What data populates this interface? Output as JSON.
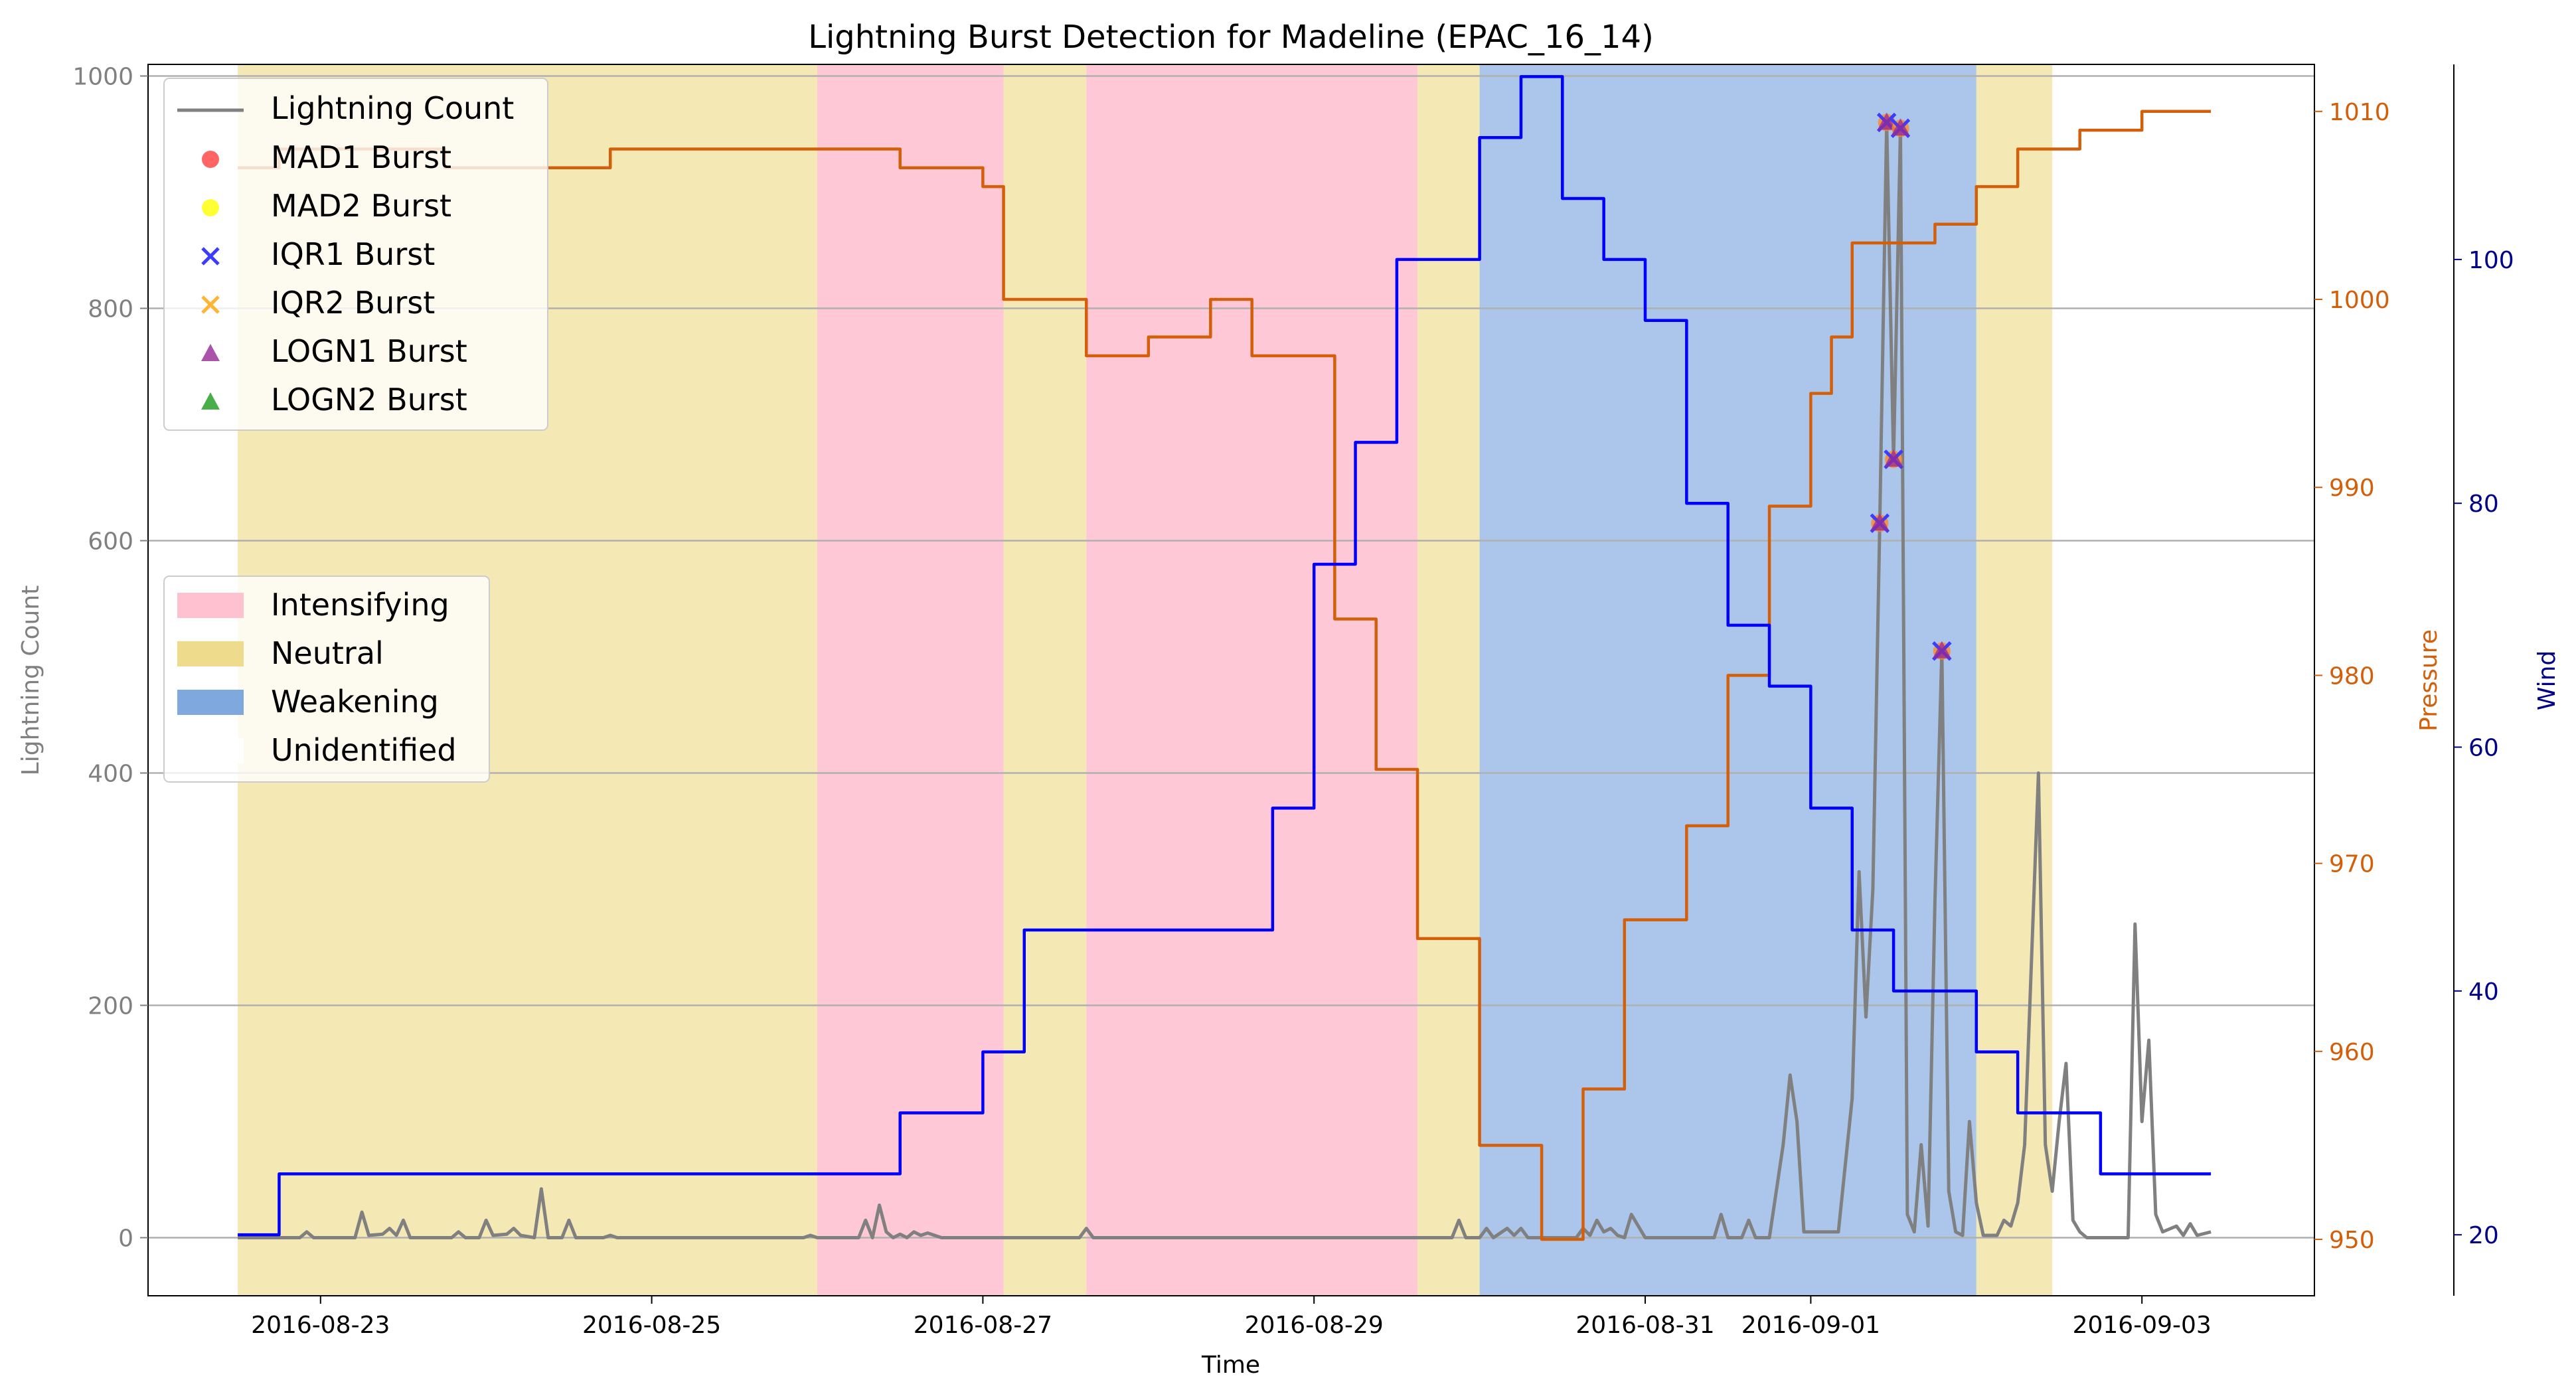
{
  "chart_data": {
    "type": "line",
    "title": "Lightning Burst Detection for Madeline (EPAC_16_14)",
    "xlabel": "Time",
    "ylabel": "Lightning Count",
    "y2label": "Pressure",
    "y3label": "Wind",
    "xlim": [
      "2016-08-21T23:00",
      "2016-09-04T01:00"
    ],
    "ylim": [
      -50,
      1010
    ],
    "y2lim": [
      947,
      1012.5
    ],
    "y3lim": [
      15,
      116
    ],
    "xticks": [
      "2016-08-23",
      "2016-08-25",
      "2016-08-27",
      "2016-08-29",
      "2016-08-31",
      "2016-09-01",
      "2016-09-03"
    ],
    "yticks": [
      0,
      200,
      400,
      600,
      800,
      1000
    ],
    "y2ticks": [
      950,
      960,
      970,
      980,
      990,
      1000,
      1010
    ],
    "y3ticks": [
      20,
      40,
      60,
      80,
      100
    ],
    "grid": "horizontal",
    "legend_upper": [
      "Lightning Count",
      "MAD1 Burst",
      "MAD2 Burst",
      "IQR1 Burst",
      "IQR2 Burst",
      "LOGN1 Burst",
      "LOGN2 Burst"
    ],
    "legend_lower": [
      "Intensifying",
      "Neutral",
      "Weakening",
      "Unidentified"
    ],
    "phases": [
      {
        "label": "Neutral",
        "start": "2016-08-22T12:00",
        "end": "2016-08-26T00:00"
      },
      {
        "label": "Intensifying",
        "start": "2016-08-26T00:00",
        "end": "2016-08-27T03:00"
      },
      {
        "label": "Neutral",
        "start": "2016-08-27T03:00",
        "end": "2016-08-27T15:00"
      },
      {
        "label": "Intensifying",
        "start": "2016-08-27T15:00",
        "end": "2016-08-29T15:00"
      },
      {
        "label": "Neutral",
        "start": "2016-08-29T15:00",
        "end": "2016-08-30T00:00"
      },
      {
        "label": "Weakening",
        "start": "2016-08-30T00:00",
        "end": "2016-09-02T00:00"
      },
      {
        "label": "Neutral",
        "start": "2016-09-02T00:00",
        "end": "2016-09-02T11:00"
      }
    ],
    "series": [
      {
        "name": "Lightning Count",
        "axis": "left",
        "color": "#808080",
        "points": [
          [
            "2016-08-22T12:00",
            0
          ],
          [
            "2016-08-22T21:00",
            0
          ],
          [
            "2016-08-22T22:00",
            5
          ],
          [
            "2016-08-22T23:00",
            0
          ],
          [
            "2016-08-23T05:00",
            0
          ],
          [
            "2016-08-23T06:00",
            22
          ],
          [
            "2016-08-23T07:00",
            2
          ],
          [
            "2016-08-23T09:00",
            3
          ],
          [
            "2016-08-23T10:00",
            8
          ],
          [
            "2016-08-23T11:00",
            2
          ],
          [
            "2016-08-23T12:00",
            15
          ],
          [
            "2016-08-23T13:00",
            0
          ],
          [
            "2016-08-23T19:00",
            0
          ],
          [
            "2016-08-23T20:00",
            5
          ],
          [
            "2016-08-23T21:00",
            0
          ],
          [
            "2016-08-23T23:00",
            0
          ],
          [
            "2016-08-24T00:00",
            15
          ],
          [
            "2016-08-24T01:00",
            2
          ],
          [
            "2016-08-24T03:00",
            3
          ],
          [
            "2016-08-24T04:00",
            8
          ],
          [
            "2016-08-24T05:00",
            2
          ],
          [
            "2016-08-24T07:00",
            0
          ],
          [
            "2016-08-24T08:00",
            42
          ],
          [
            "2016-08-24T09:00",
            0
          ],
          [
            "2016-08-24T11:00",
            0
          ],
          [
            "2016-08-24T12:00",
            15
          ],
          [
            "2016-08-24T13:00",
            0
          ],
          [
            "2016-08-24T17:00",
            0
          ],
          [
            "2016-08-24T18:00",
            2
          ],
          [
            "2016-08-24T19:00",
            0
          ],
          [
            "2016-08-25T22:00",
            0
          ],
          [
            "2016-08-25T23:00",
            2
          ],
          [
            "2016-08-26T00:00",
            0
          ],
          [
            "2016-08-26T06:00",
            0
          ],
          [
            "2016-08-26T07:00",
            15
          ],
          [
            "2016-08-26T08:00",
            0
          ],
          [
            "2016-08-26T09:00",
            28
          ],
          [
            "2016-08-26T10:00",
            5
          ],
          [
            "2016-08-26T11:00",
            0
          ],
          [
            "2016-08-26T12:00",
            3
          ],
          [
            "2016-08-26T13:00",
            0
          ],
          [
            "2016-08-26T14:00",
            5
          ],
          [
            "2016-08-26T15:00",
            2
          ],
          [
            "2016-08-26T16:00",
            4
          ],
          [
            "2016-08-26T17:00",
            2
          ],
          [
            "2016-08-26T18:00",
            0
          ],
          [
            "2016-08-27T14:00",
            0
          ],
          [
            "2016-08-27T15:00",
            8
          ],
          [
            "2016-08-27T16:00",
            0
          ],
          [
            "2016-08-29T20:00",
            0
          ],
          [
            "2016-08-29T21:00",
            15
          ],
          [
            "2016-08-29T22:00",
            0
          ],
          [
            "2016-08-30T00:00",
            0
          ],
          [
            "2016-08-30T01:00",
            8
          ],
          [
            "2016-08-30T02:00",
            0
          ],
          [
            "2016-08-30T03:00",
            4
          ],
          [
            "2016-08-30T04:00",
            8
          ],
          [
            "2016-08-30T05:00",
            2
          ],
          [
            "2016-08-30T06:00",
            8
          ],
          [
            "2016-08-30T07:00",
            0
          ],
          [
            "2016-08-30T14:00",
            0
          ],
          [
            "2016-08-30T15:00",
            8
          ],
          [
            "2016-08-30T16:00",
            2
          ],
          [
            "2016-08-30T17:00",
            15
          ],
          [
            "2016-08-30T18:00",
            5
          ],
          [
            "2016-08-30T19:00",
            8
          ],
          [
            "2016-08-30T20:00",
            2
          ],
          [
            "2016-08-30T21:00",
            0
          ],
          [
            "2016-08-30T22:00",
            20
          ],
          [
            "2016-08-30T23:00",
            10
          ],
          [
            "2016-08-31T00:00",
            0
          ],
          [
            "2016-08-31T10:00",
            0
          ],
          [
            "2016-08-31T11:00",
            20
          ],
          [
            "2016-08-31T12:00",
            0
          ],
          [
            "2016-08-31T14:00",
            0
          ],
          [
            "2016-08-31T15:00",
            15
          ],
          [
            "2016-08-31T16:00",
            0
          ],
          [
            "2016-08-31T18:00",
            0
          ],
          [
            "2016-08-31T19:00",
            40
          ],
          [
            "2016-08-31T20:00",
            80
          ],
          [
            "2016-08-31T21:00",
            140
          ],
          [
            "2016-08-31T22:00",
            100
          ],
          [
            "2016-08-31T23:00",
            5
          ],
          [
            "2016-09-01T04:00",
            5
          ],
          [
            "2016-09-01T06:00",
            120
          ],
          [
            "2016-09-01T07:00",
            315
          ],
          [
            "2016-09-01T08:00",
            190
          ],
          [
            "2016-09-01T09:00",
            300
          ],
          [
            "2016-09-01T10:00",
            615
          ],
          [
            "2016-09-01T11:00",
            960
          ],
          [
            "2016-09-01T12:00",
            670
          ],
          [
            "2016-09-01T13:00",
            955
          ],
          [
            "2016-09-01T14:00",
            20
          ],
          [
            "2016-09-01T15:00",
            5
          ],
          [
            "2016-09-01T16:00",
            80
          ],
          [
            "2016-09-01T17:00",
            10
          ],
          [
            "2016-09-01T18:00",
            290
          ],
          [
            "2016-09-01T19:00",
            505
          ],
          [
            "2016-09-01T20:00",
            40
          ],
          [
            "2016-09-01T21:00",
            5
          ],
          [
            "2016-09-01T22:00",
            2
          ],
          [
            "2016-09-01T23:00",
            100
          ],
          [
            "2016-09-02T00:00",
            30
          ],
          [
            "2016-09-02T01:00",
            2
          ],
          [
            "2016-09-02T03:00",
            2
          ],
          [
            "2016-09-02T04:00",
            15
          ],
          [
            "2016-09-02T05:00",
            10
          ],
          [
            "2016-09-02T06:00",
            30
          ],
          [
            "2016-09-02T07:00",
            80
          ],
          [
            "2016-09-02T08:00",
            240
          ],
          [
            "2016-09-02T09:00",
            400
          ],
          [
            "2016-09-02T10:00",
            80
          ],
          [
            "2016-09-02T11:00",
            40
          ],
          [
            "2016-09-02T12:00",
            100
          ],
          [
            "2016-09-02T13:00",
            150
          ],
          [
            "2016-09-02T14:00",
            15
          ],
          [
            "2016-09-02T15:00",
            5
          ],
          [
            "2016-09-02T16:00",
            0
          ],
          [
            "2016-09-02T22:00",
            0
          ],
          [
            "2016-09-02T23:00",
            270
          ],
          [
            "2016-09-03T00:00",
            100
          ],
          [
            "2016-09-03T01:00",
            170
          ],
          [
            "2016-09-03T02:00",
            20
          ],
          [
            "2016-09-03T03:00",
            5
          ],
          [
            "2016-09-03T05:00",
            10
          ],
          [
            "2016-09-03T06:00",
            2
          ],
          [
            "2016-09-03T07:00",
            12
          ],
          [
            "2016-09-03T08:00",
            2
          ],
          [
            "2016-09-03T10:00",
            5
          ]
        ]
      },
      {
        "name": "Pressure",
        "axis": "right",
        "color": "#d45f0a",
        "step": true,
        "points": [
          [
            "2016-08-22T12:00",
            1007
          ],
          [
            "2016-08-22T18:00",
            1008
          ],
          [
            "2016-08-23T18:00",
            1007
          ],
          [
            "2016-08-24T18:00",
            1008
          ],
          [
            "2016-08-26T12:00",
            1007
          ],
          [
            "2016-08-27T00:00",
            1006
          ],
          [
            "2016-08-27T03:00",
            1000
          ],
          [
            "2016-08-27T15:00",
            997
          ],
          [
            "2016-08-28T00:00",
            998
          ],
          [
            "2016-08-28T09:00",
            1000
          ],
          [
            "2016-08-28T15:00",
            997
          ],
          [
            "2016-08-29T03:00",
            983
          ],
          [
            "2016-08-29T09:00",
            975
          ],
          [
            "2016-08-29T15:00",
            966
          ],
          [
            "2016-08-30T00:00",
            955
          ],
          [
            "2016-08-30T09:00",
            950
          ],
          [
            "2016-08-30T15:00",
            958
          ],
          [
            "2016-08-30T21:00",
            967
          ],
          [
            "2016-08-31T06:00",
            972
          ],
          [
            "2016-08-31T12:00",
            980
          ],
          [
            "2016-08-31T18:00",
            989
          ],
          [
            "2016-09-01T00:00",
            995
          ],
          [
            "2016-09-01T03:00",
            998
          ],
          [
            "2016-09-01T06:00",
            1003
          ],
          [
            "2016-09-01T18:00",
            1004
          ],
          [
            "2016-09-02T00:00",
            1006
          ],
          [
            "2016-09-02T06:00",
            1008
          ],
          [
            "2016-09-02T15:00",
            1009
          ],
          [
            "2016-09-03T00:00",
            1010
          ],
          [
            "2016-09-03T10:00",
            1010
          ]
        ]
      },
      {
        "name": "Wind",
        "axis": "right2",
        "color": "#0000ff",
        "step": true,
        "points": [
          [
            "2016-08-22T12:00",
            20
          ],
          [
            "2016-08-22T18:00",
            25
          ],
          [
            "2016-08-26T12:00",
            30
          ],
          [
            "2016-08-27T00:00",
            35
          ],
          [
            "2016-08-27T06:00",
            45
          ],
          [
            "2016-08-28T18:00",
            55
          ],
          [
            "2016-08-29T00:00",
            75
          ],
          [
            "2016-08-29T06:00",
            85
          ],
          [
            "2016-08-29T12:00",
            100
          ],
          [
            "2016-08-30T00:00",
            110
          ],
          [
            "2016-08-30T06:00",
            115
          ],
          [
            "2016-08-30T12:00",
            105
          ],
          [
            "2016-08-30T18:00",
            100
          ],
          [
            "2016-08-31T00:00",
            95
          ],
          [
            "2016-08-31T06:00",
            80
          ],
          [
            "2016-08-31T12:00",
            70
          ],
          [
            "2016-08-31T18:00",
            65
          ],
          [
            "2016-09-01T00:00",
            55
          ],
          [
            "2016-09-01T06:00",
            45
          ],
          [
            "2016-09-01T12:00",
            40
          ],
          [
            "2016-09-01T18:00",
            40
          ],
          [
            "2016-09-02T00:00",
            35
          ],
          [
            "2016-09-02T06:00",
            30
          ],
          [
            "2016-09-02T12:00",
            30
          ],
          [
            "2016-09-02T18:00",
            25
          ],
          [
            "2016-09-03T10:00",
            25
          ]
        ]
      }
    ],
    "bursts": [
      {
        "x": "2016-09-01T10:00",
        "y": 615
      },
      {
        "x": "2016-09-01T11:00",
        "y": 960
      },
      {
        "x": "2016-09-01T12:00",
        "y": 670
      },
      {
        "x": "2016-09-01T13:00",
        "y": 955
      },
      {
        "x": "2016-09-01T19:00",
        "y": 505
      }
    ]
  },
  "colors": {
    "intensifying": "#ffb6c8",
    "neutral": "#eedc8c",
    "weakening": "#7ea8de",
    "mad1": "#ff3232",
    "mad2": "#ffff1e",
    "iqr1": "#3c3cff",
    "iqr2": "#ffb432",
    "logn1": "#962896",
    "logn2": "#28a028"
  }
}
